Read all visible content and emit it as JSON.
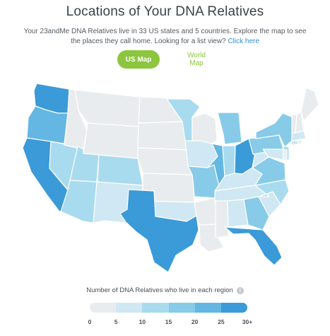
{
  "header": {
    "title": "Locations of Your DNA Relatives",
    "intro_text": "Your 23andMe DNA Relatives live in 33 US states and 5 countries. Explore the map to see the places they call home. Looking for a list view?",
    "list_view_link": "Click here"
  },
  "toggle": {
    "us_label": "US Map",
    "world_label": "World Map",
    "selected": "US Map"
  },
  "legend": {
    "title": "Number of DNA Relatives who live in each region",
    "ticks": [
      "0",
      "5",
      "10",
      "15",
      "20",
      "25",
      "30+"
    ],
    "colors": [
      "#e9ecee",
      "#cfe8f3",
      "#a9dbef",
      "#88cbe8",
      "#64b7e2",
      "#3b9ad8"
    ]
  },
  "colors": {
    "accent_green": "#8cc63f",
    "link_blue": "#2f8fd4",
    "state_border": "#ffffff"
  },
  "map": {
    "states": [
      {
        "id": "WA",
        "level": 5
      },
      {
        "id": "OR",
        "level": 4
      },
      {
        "id": "CA",
        "level": 5
      },
      {
        "id": "NV",
        "level": 2
      },
      {
        "id": "ID",
        "level": 0
      },
      {
        "id": "MT",
        "level": 0
      },
      {
        "id": "WY",
        "level": 0
      },
      {
        "id": "UT",
        "level": 2
      },
      {
        "id": "AZ",
        "level": 2
      },
      {
        "id": "CO",
        "level": 2
      },
      {
        "id": "NM",
        "level": 1
      },
      {
        "id": "ND",
        "level": 0
      },
      {
        "id": "SD",
        "level": 0
      },
      {
        "id": "NE",
        "level": 0
      },
      {
        "id": "KS",
        "level": 0
      },
      {
        "id": "OK",
        "level": 1
      },
      {
        "id": "TX",
        "level": 5
      },
      {
        "id": "MN",
        "level": 2
      },
      {
        "id": "IA",
        "level": 1
      },
      {
        "id": "MO",
        "level": 3
      },
      {
        "id": "AR",
        "level": 0
      },
      {
        "id": "LA",
        "level": 0
      },
      {
        "id": "WI",
        "level": 0
      },
      {
        "id": "IL",
        "level": 4
      },
      {
        "id": "MI",
        "level": 3
      },
      {
        "id": "IN",
        "level": 2
      },
      {
        "id": "OH",
        "level": 5
      },
      {
        "id": "KY",
        "level": 1
      },
      {
        "id": "TN",
        "level": 1
      },
      {
        "id": "MS",
        "level": 0
      },
      {
        "id": "AL",
        "level": 1
      },
      {
        "id": "GA",
        "level": 3
      },
      {
        "id": "FL",
        "level": 5
      },
      {
        "id": "SC",
        "level": 1
      },
      {
        "id": "NC",
        "level": 2
      },
      {
        "id": "VA",
        "level": 3
      },
      {
        "id": "WV",
        "level": 1
      },
      {
        "id": "PA",
        "level": 3
      },
      {
        "id": "NY",
        "level": 3
      },
      {
        "id": "NJ",
        "level": 2
      },
      {
        "id": "MD",
        "level": 1
      },
      {
        "id": "DE",
        "level": 0
      },
      {
        "id": "CT",
        "level": 1
      },
      {
        "id": "RI",
        "level": 0
      },
      {
        "id": "MA",
        "level": 1
      },
      {
        "id": "VT",
        "level": 0
      },
      {
        "id": "NH",
        "level": 0
      },
      {
        "id": "ME",
        "level": 0
      }
    ]
  }
}
